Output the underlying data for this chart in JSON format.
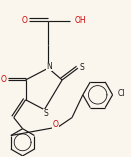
{
  "background_color": "#faf6ee",
  "bond_color": "#1a1a1a",
  "atom_colors": {
    "O": "#cc0000",
    "S": "#1a1a1a",
    "N": "#1a1a1a",
    "Cl": "#1a1a1a"
  },
  "figsize": [
    1.31,
    1.57
  ],
  "dpi": 100
}
